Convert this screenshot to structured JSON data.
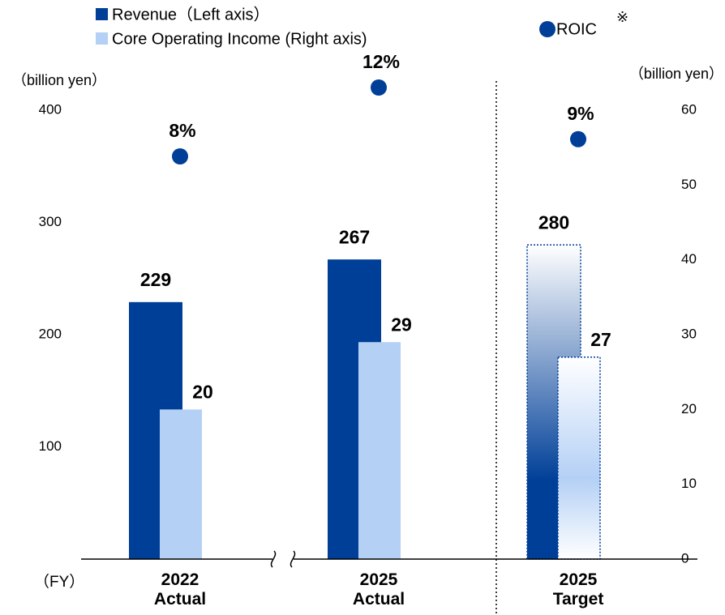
{
  "chart_data": {
    "type": "bar",
    "categories": [
      "2022 Actual",
      "2025 Actual",
      "2025 Target"
    ],
    "x_label": "（FY）",
    "y_label": "（billion yen）",
    "y2_label": "（billion yen）",
    "series": [
      {
        "name": "Revenue（Left axis）",
        "color": "#003f98",
        "values": [
          229,
          267,
          280
        ]
      },
      {
        "name": "Core Operating Income (Right axis)",
        "color": "#b4d0f5",
        "axis": "y2",
        "values": [
          20,
          29,
          27
        ]
      },
      {
        "name": "ROIC",
        "type": "scatter",
        "color": "#003f98",
        "values": [
          8,
          12,
          9
        ],
        "value_labels": [
          "8%",
          "12%",
          "9%"
        ]
      }
    ],
    "legend_note": "※",
    "dotted_category": 2,
    "ylim": [
      0,
      400
    ],
    "yticks": [
      100,
      200,
      300,
      400
    ],
    "y2lim": [
      0,
      60
    ],
    "y2ticks": [
      0,
      10,
      20,
      30,
      40,
      50,
      60
    ]
  }
}
